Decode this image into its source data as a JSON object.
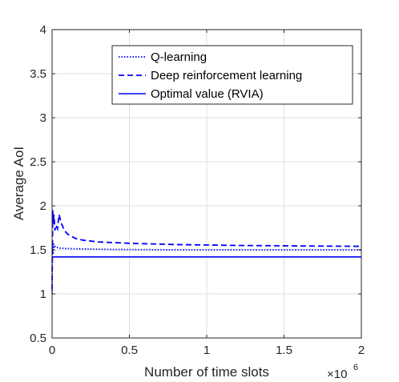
{
  "chart_data": {
    "type": "line",
    "title": "",
    "xlabel": "Number of time slots",
    "ylabel": "Average AoI",
    "x_multiplier": "×10",
    "x_multiplier_exponent": "6",
    "xlim": [
      0,
      2
    ],
    "ylim": [
      0.5,
      4
    ],
    "xticks": [
      "0",
      "0.5",
      "1",
      "1.5",
      "2"
    ],
    "yticks": [
      "0.5",
      "1",
      "1.5",
      "2",
      "2.5",
      "3",
      "3.5",
      "4"
    ],
    "grid": true,
    "legend_position": "top-right",
    "series": [
      {
        "name": "Q-learning",
        "style": "dotted",
        "color": "#0000ff",
        "x": [
          0,
          0.002,
          0.005,
          0.008,
          0.012,
          0.02,
          0.03,
          0.05,
          0.1,
          0.2,
          0.4,
          0.8,
          1.2,
          1.6,
          2.0
        ],
        "y": [
          1.0,
          1.6,
          1.45,
          1.58,
          1.52,
          1.54,
          1.53,
          1.52,
          1.515,
          1.51,
          1.505,
          1.5,
          1.5,
          1.5,
          1.5
        ]
      },
      {
        "name": "Deep reinforcement learning",
        "style": "dashed",
        "color": "#0000ff",
        "x": [
          0,
          0.004,
          0.008,
          0.012,
          0.018,
          0.025,
          0.035,
          0.045,
          0.06,
          0.08,
          0.1,
          0.15,
          0.2,
          0.3,
          0.5,
          0.8,
          1.2,
          1.6,
          2.0
        ],
        "y": [
          1.05,
          1.95,
          1.8,
          1.9,
          1.72,
          1.78,
          1.74,
          1.9,
          1.8,
          1.72,
          1.68,
          1.63,
          1.61,
          1.59,
          1.575,
          1.56,
          1.55,
          1.545,
          1.54
        ]
      },
      {
        "name": "Optimal value (RVIA)",
        "style": "solid",
        "color": "#0000ff",
        "x": [
          0,
          2
        ],
        "y": [
          1.42,
          1.42
        ]
      }
    ]
  }
}
